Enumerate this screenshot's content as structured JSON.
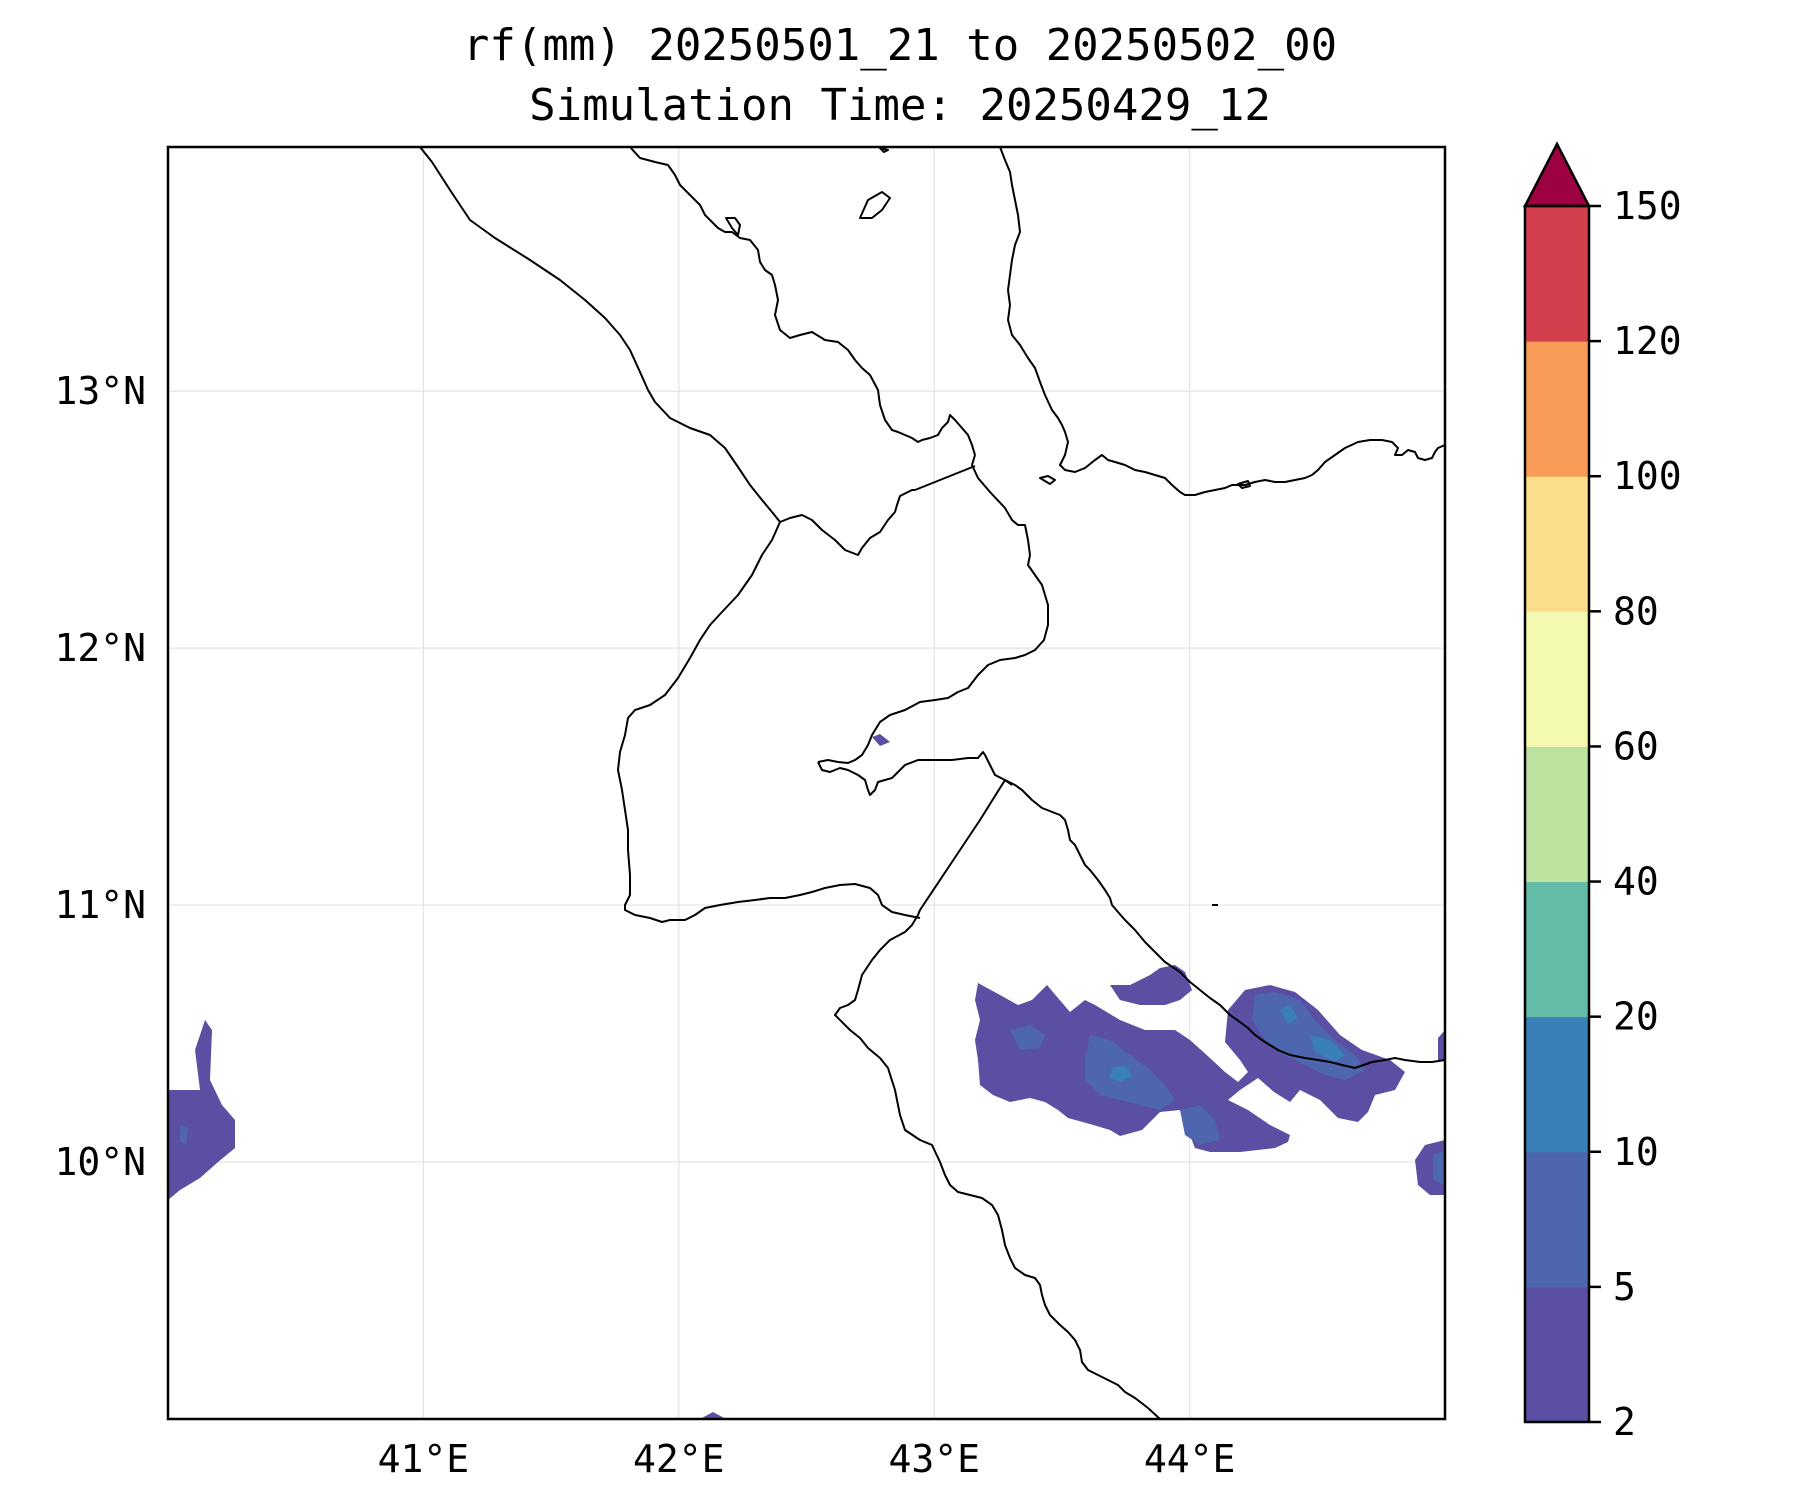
{
  "title": {
    "line1": "rf(mm) 20250501_21 to 20250502_00",
    "line2": "Simulation Time: 20250429_12"
  },
  "map": {
    "lon_range": [
      40.0,
      45.0
    ],
    "lat_range": [
      9.0,
      13.95
    ],
    "gridlines": true,
    "lon_ticks": [
      {
        "value": 41,
        "label": "41°E"
      },
      {
        "value": 42,
        "label": "42°E"
      },
      {
        "value": 43,
        "label": "43°E"
      },
      {
        "value": 44,
        "label": "44°E"
      }
    ],
    "lat_ticks": [
      {
        "value": 10,
        "label": "10°N"
      },
      {
        "value": 11,
        "label": "11°N"
      },
      {
        "value": 12,
        "label": "12°N"
      },
      {
        "value": 13,
        "label": "13°N"
      }
    ]
  },
  "colorbar": {
    "levels": [
      "2",
      "5",
      "10",
      "20",
      "40",
      "60",
      "80",
      "100",
      "120",
      "150"
    ],
    "colors": [
      "#5a4fa2",
      "#4e66ae",
      "#3a80b8",
      "#63bca8",
      "#bde3a0",
      "#f3f9ae",
      "#fbde8c",
      "#f89c58",
      "#d33f4d"
    ],
    "extend_color": "#9e0142",
    "extend": "max"
  },
  "rain_colors": {
    "low": "#5a4fa2",
    "mid": "#4e66ae",
    "high": "#3a80b8"
  }
}
